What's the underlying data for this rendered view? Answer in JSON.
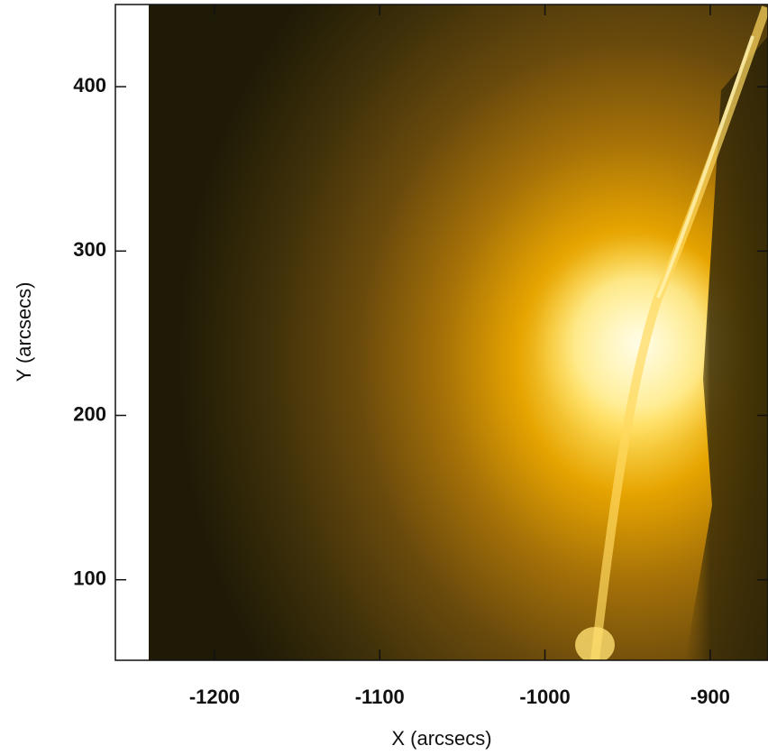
{
  "chart_data": {
    "type": "image",
    "xlabel": "X (arcsecs)",
    "ylabel": "Y (arcsecs)",
    "xlim": [
      -1260,
      -865
    ],
    "ylim": [
      51,
      450
    ],
    "xticks": [
      -1200,
      -1100,
      -1000,
      -900
    ],
    "yticks": [
      100,
      200,
      300,
      400
    ]
  }
}
